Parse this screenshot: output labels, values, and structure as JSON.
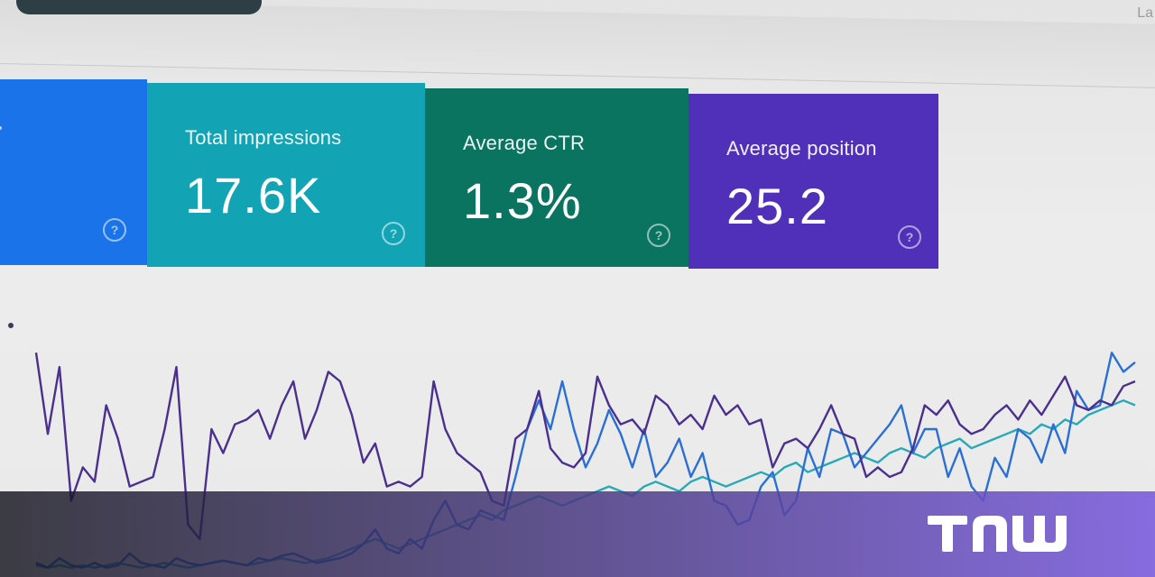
{
  "header": {
    "corner_text": "La"
  },
  "cards": [
    {
      "label": "",
      "value": "",
      "color": "#1a73e8",
      "icon": "help-icon"
    },
    {
      "label": "Total impressions",
      "value": "17.6K",
      "color": "#12a4b4",
      "icon": "help-icon"
    },
    {
      "label": "Average CTR",
      "value": "1.3%",
      "color": "#0a7460",
      "icon": "help-icon"
    },
    {
      "label": "Average position",
      "value": "25.2",
      "color": "#5030b9",
      "icon": "help-icon"
    }
  ],
  "help_glyph": "?",
  "chart_data": {
    "type": "line",
    "title": "",
    "xlabel": "",
    "ylabel": "",
    "grid": false,
    "legend": "none",
    "x": [
      0,
      1,
      2,
      3,
      4,
      5,
      6,
      7,
      8,
      9,
      10,
      11,
      12,
      13,
      14,
      15,
      16,
      17,
      18,
      19,
      20,
      21,
      22,
      23,
      24,
      25,
      26,
      27,
      28,
      29,
      30,
      31,
      32,
      33,
      34,
      35,
      36,
      37,
      38,
      39,
      40,
      41,
      42,
      43,
      44,
      45,
      46,
      47,
      48,
      49,
      50,
      51,
      52,
      53,
      54,
      55,
      56,
      57,
      58,
      59,
      60,
      61,
      62,
      63,
      64,
      65,
      66,
      67,
      68,
      69,
      70,
      71,
      72,
      73,
      74,
      75,
      76,
      77,
      78,
      79,
      80,
      81,
      82,
      83,
      84,
      85,
      86,
      87,
      88,
      89,
      90,
      91,
      92,
      93,
      94
    ],
    "ylim": [
      0,
      100
    ],
    "series": [
      {
        "color": "#4a2f8f",
        "values": [
          92,
          58,
          86,
          30,
          44,
          38,
          70,
          56,
          36,
          38,
          40,
          60,
          86,
          20,
          14,
          60,
          50,
          62,
          64,
          68,
          56,
          70,
          80,
          56,
          68,
          84,
          80,
          66,
          46,
          54,
          36,
          38,
          36,
          40,
          80,
          60,
          50,
          46,
          42,
          30,
          28,
          56,
          60,
          76,
          52,
          46,
          44,
          50,
          82,
          70,
          62,
          64,
          58,
          74,
          70,
          62,
          66,
          60,
          74,
          66,
          70,
          62,
          64,
          44,
          54,
          56,
          52,
          60,
          70,
          58,
          56,
          40,
          44,
          40,
          42,
          52,
          70,
          66,
          72,
          62,
          58,
          60,
          66,
          70,
          64,
          72,
          66,
          74,
          82,
          70,
          68,
          72,
          70,
          78,
          80
        ]
      },
      {
        "color": "#2a6fd6",
        "values": [
          4,
          2,
          6,
          3,
          2,
          4,
          2,
          3,
          8,
          4,
          3,
          2,
          6,
          4,
          3,
          4,
          5,
          4,
          3,
          6,
          5,
          7,
          8,
          6,
          4,
          5,
          6,
          8,
          12,
          18,
          10,
          8,
          14,
          10,
          22,
          30,
          20,
          18,
          26,
          24,
          22,
          40,
          60,
          72,
          60,
          80,
          60,
          44,
          54,
          68,
          58,
          44,
          60,
          40,
          46,
          56,
          40,
          50,
          30,
          28,
          20,
          22,
          36,
          42,
          24,
          30,
          52,
          40,
          60,
          58,
          44,
          50,
          56,
          62,
          70,
          50,
          60,
          60,
          40,
          52,
          36,
          30,
          48,
          40,
          60,
          56,
          46,
          62,
          50,
          76,
          68,
          70,
          92,
          84,
          88
        ]
      },
      {
        "color": "#29a9b8",
        "values": [
          3,
          2,
          3,
          2,
          3,
          2,
          3,
          4,
          3,
          2,
          3,
          4,
          3,
          2,
          3,
          4,
          5,
          4,
          3,
          4,
          5,
          6,
          5,
          4,
          5,
          6,
          8,
          10,
          12,
          14,
          12,
          10,
          12,
          14,
          16,
          18,
          20,
          22,
          24,
          22,
          26,
          28,
          30,
          32,
          30,
          28,
          30,
          32,
          34,
          36,
          34,
          32,
          36,
          38,
          36,
          34,
          38,
          40,
          38,
          36,
          38,
          40,
          42,
          40,
          44,
          46,
          42,
          44,
          46,
          48,
          50,
          48,
          46,
          50,
          52,
          50,
          48,
          52,
          54,
          56,
          52,
          54,
          56,
          58,
          60,
          58,
          62,
          60,
          64,
          62,
          66,
          68,
          70,
          72,
          70
        ]
      }
    ]
  },
  "banner": {
    "logo_name": "TNW",
    "logo_color": "#ffffff",
    "gradient_start": "#14141e",
    "gradient_end": "#785adc"
  }
}
